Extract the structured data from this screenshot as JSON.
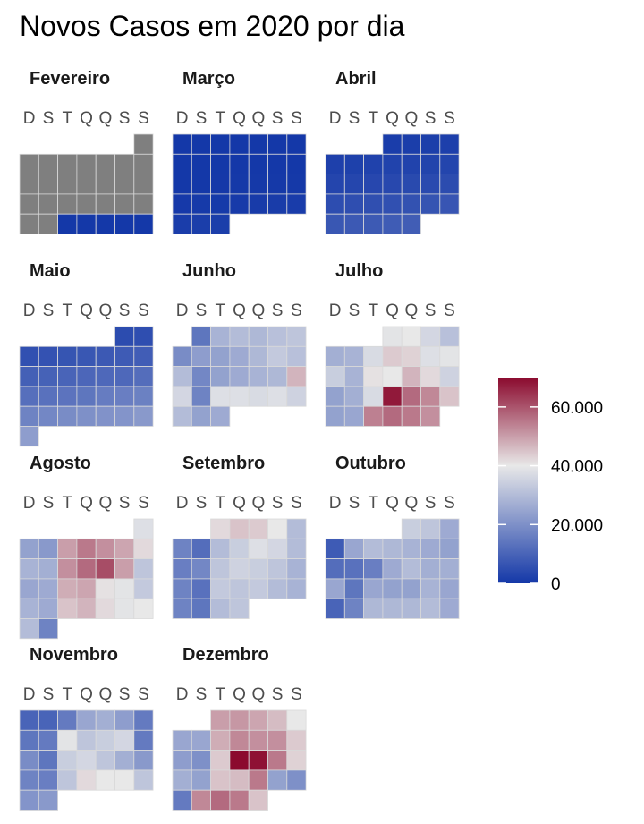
{
  "chart_data": {
    "type": "heatmap",
    "title": "Novos Casos em 2020 por dia",
    "weekday_labels": [
      "D",
      "S",
      "T",
      "Q",
      "Q",
      "S",
      "S"
    ],
    "colors": {
      "low": "#1438a8",
      "mid": "#e8e8e8",
      "high": "#8b0a2e",
      "missing": "#7f7f7f",
      "cell_border": "#d9d9d9"
    },
    "legend": {
      "position": "right",
      "range": [
        0,
        70000
      ],
      "ticks": [
        {
          "value": 0,
          "label": "0"
        },
        {
          "value": 20000,
          "label": "20.000"
        },
        {
          "value": 40000,
          "label": "40.000"
        },
        {
          "value": 60000,
          "label": "60.000"
        }
      ]
    },
    "months": [
      {
        "name": "Fevereiro",
        "first_weekday": 6,
        "days": 29,
        "values": [
          null,
          null,
          null,
          null,
          null,
          null,
          null,
          null,
          null,
          null,
          null,
          null,
          null,
          null,
          null,
          null,
          null,
          null,
          null,
          null,
          null,
          null,
          null,
          null,
          1,
          0,
          0,
          0,
          0
        ]
      },
      {
        "name": "Março",
        "first_weekday": 0,
        "days": 31,
        "values": [
          0,
          0,
          1,
          1,
          2,
          4,
          5,
          3,
          6,
          12,
          20,
          31,
          47,
          60,
          75,
          90,
          110,
          130,
          170,
          230,
          280,
          320,
          410,
          460,
          500,
          720,
          880,
          960,
          1100,
          1250,
          1300
        ]
      },
      {
        "name": "Abril",
        "first_weekday": 3,
        "days": 30,
        "values": [
          1200,
          1300,
          1500,
          1700,
          1800,
          1950,
          2200,
          2400,
          2500,
          2700,
          2900,
          3000,
          3200,
          3500,
          3700,
          4000,
          4200,
          4500,
          4700,
          5000,
          5200,
          5500,
          5800,
          6300,
          6700,
          7000,
          7500,
          7800,
          8100,
          8400
        ]
      },
      {
        "name": "Maio",
        "first_weekday": 5,
        "days": 31,
        "values": [
          4500,
          5000,
          5500,
          6000,
          6500,
          7000,
          7500,
          8000,
          8500,
          9000,
          9500,
          10000,
          10500,
          11000,
          11000,
          12000,
          12500,
          13000,
          13500,
          14000,
          15500,
          16000,
          16500,
          17000,
          18000,
          19000,
          20000,
          20500,
          21000,
          22000,
          23000
        ]
      },
      {
        "name": "Junho",
        "first_weekday": 1,
        "days": 30,
        "values": [
          14000,
          28000,
          30000,
          29000,
          31000,
          32000,
          19000,
          23000,
          24000,
          26000,
          29000,
          33000,
          31000,
          30000,
          18000,
          24000,
          26000,
          28000,
          29000,
          47000,
          36000,
          17000,
          38000,
          38000,
          37000,
          38000,
          35000,
          30000,
          24000,
          26000
        ]
      },
      {
        "name": "Julho",
        "first_weekday": 3,
        "days": 31,
        "values": [
          39000,
          40000,
          36000,
          31000,
          27000,
          28000,
          37000,
          44000,
          43000,
          38000,
          39000,
          34000,
          28000,
          41000,
          40000,
          47000,
          42000,
          35000,
          24000,
          27000,
          37000,
          68000,
          57000,
          53000,
          45000,
          24000,
          25000,
          54000,
          57000,
          55000,
          52000
        ]
      },
      {
        "name": "Agosto",
        "first_weekday": 6,
        "days": 31,
        "values": [
          38000,
          24000,
          22000,
          50000,
          55000,
          52000,
          49000,
          42000,
          28000,
          27000,
          52000,
          57000,
          61000,
          50000,
          32000,
          25000,
          26000,
          48000,
          49000,
          41000,
          39000,
          33000,
          28000,
          26000,
          45000,
          47000,
          42000,
          39000,
          40000,
          30000,
          17000
        ]
      },
      {
        "name": "Setembro",
        "first_weekday": 2,
        "days": 30,
        "values": [
          42000,
          45000,
          44000,
          40000,
          30000,
          17000,
          12000,
          30000,
          34000,
          38000,
          36000,
          30000,
          16000,
          18000,
          32000,
          35000,
          34000,
          32000,
          28000,
          17000,
          13000,
          33000,
          32000,
          33000,
          30000,
          28000,
          17000,
          14000,
          30000,
          32000
        ]
      },
      {
        "name": "Outubro",
        "first_weekday": 4,
        "days": 31,
        "values": [
          34000,
          32000,
          26000,
          8000,
          25000,
          30000,
          29000,
          28000,
          26000,
          24000,
          12000,
          13000,
          16000,
          26000,
          30000,
          27000,
          27000,
          25000,
          14000,
          25000,
          24000,
          24000,
          28000,
          25000,
          10000,
          17000,
          29000,
          29000,
          29000,
          30000,
          26000
        ]
      },
      {
        "name": "Novembro",
        "first_weekday": 0,
        "days": 30,
        "values": [
          10000,
          10000,
          15000,
          25000,
          27000,
          23000,
          15000,
          14000,
          15000,
          39000,
          32000,
          34000,
          36000,
          15000,
          19000,
          14000,
          34000,
          36000,
          32000,
          27000,
          22000,
          17000,
          16000,
          32000,
          42000,
          40000,
          40000,
          32000,
          21000,
          22000
        ]
      },
      {
        "name": "Dezembro",
        "first_weekday": 2,
        "days": 31,
        "values": [
          50000,
          51000,
          49000,
          46000,
          40000,
          25000,
          25000,
          48000,
          53000,
          52000,
          52000,
          44000,
          23000,
          20000,
          44000,
          70000,
          69000,
          55000,
          43000,
          27000,
          24000,
          45000,
          46000,
          55000,
          24000,
          20000,
          15000,
          53000,
          57000,
          55000,
          45000
        ]
      }
    ]
  }
}
